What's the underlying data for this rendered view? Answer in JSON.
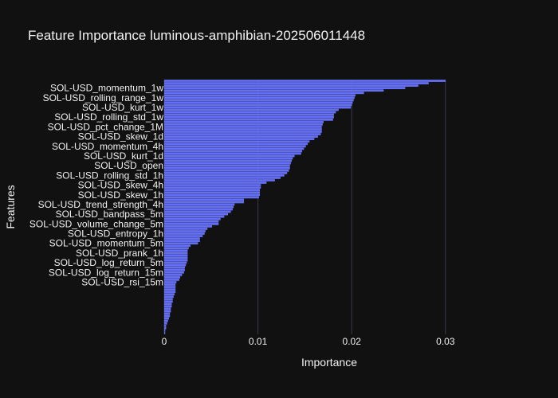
{
  "chart_data": {
    "type": "bar",
    "orientation": "horizontal",
    "title": "Feature Importance luminous-amphibian-202506011448",
    "xlabel": "Importance",
    "ylabel": "Features",
    "xlim": [
      0,
      0.0352
    ],
    "x_ticks": [
      0,
      0.01,
      0.02,
      0.03
    ],
    "x_tick_labels": [
      "0",
      "0.01",
      "0.02",
      "0.03"
    ],
    "grid": "vertical",
    "bar_color": "#636efa",
    "background_color": "#111111",
    "grid_color": "#3a3a4a",
    "text_color": "#f2f2f2",
    "feature_count": 105,
    "labeled_features": [
      {
        "name": "SOL-USD_momentum_1w",
        "rank": 3
      },
      {
        "name": "SOL-USD_rolling_range_1w",
        "rank": 7
      },
      {
        "name": "SOL-USD_kurt_1w",
        "rank": 11
      },
      {
        "name": "SOL-USD_rolling_std_1w",
        "rank": 15
      },
      {
        "name": "SOL-USD_pct_change_1M",
        "rank": 19
      },
      {
        "name": "SOL-USD_skew_1d",
        "rank": 23
      },
      {
        "name": "SOL-USD_momentum_4h",
        "rank": 27
      },
      {
        "name": "SOL-USD_kurt_1d",
        "rank": 31
      },
      {
        "name": "SOL-USD_open",
        "rank": 35
      },
      {
        "name": "SOL-USD_rolling_std_1h",
        "rank": 39
      },
      {
        "name": "SOL-USD_skew_4h",
        "rank": 43
      },
      {
        "name": "SOL-USD_skew_1h",
        "rank": 47
      },
      {
        "name": "SOL-USD_trend_strength_4h",
        "rank": 51
      },
      {
        "name": "SOL-USD_bandpass_5m",
        "rank": 55
      },
      {
        "name": "SOL-USD_volume_change_5m",
        "rank": 59
      },
      {
        "name": "SOL-USD_entropy_1h",
        "rank": 63
      },
      {
        "name": "SOL-USD_momentum_5m",
        "rank": 67
      },
      {
        "name": "SOL-USD_prank_1h",
        "rank": 71
      },
      {
        "name": "SOL-USD_log_return_5m",
        "rank": 75
      },
      {
        "name": "SOL-USD_log_return_15m",
        "rank": 79
      },
      {
        "name": "SOL-USD_rsi_15m",
        "rank": 83
      }
    ],
    "values": [
      0.03,
      0.0282,
      0.0271,
      0.0257,
      0.0234,
      0.0213,
      0.0204,
      0.0203,
      0.0202,
      0.0201,
      0.02,
      0.0199,
      0.0186,
      0.0183,
      0.0181,
      0.0181,
      0.018,
      0.017,
      0.0169,
      0.0168,
      0.0168,
      0.0168,
      0.0167,
      0.0164,
      0.016,
      0.0155,
      0.0153,
      0.0151,
      0.0149,
      0.0147,
      0.0146,
      0.0139,
      0.0137,
      0.0136,
      0.0135,
      0.0134,
      0.0134,
      0.0133,
      0.0131,
      0.0128,
      0.0124,
      0.0118,
      0.0109,
      0.0103,
      0.0103,
      0.0102,
      0.0102,
      0.0102,
      0.0101,
      0.0085,
      0.0085,
      0.0075,
      0.0074,
      0.0073,
      0.0071,
      0.0068,
      0.0064,
      0.006,
      0.0058,
      0.0058,
      0.0051,
      0.0046,
      0.0044,
      0.0043,
      0.0041,
      0.0038,
      0.0038,
      0.0036,
      0.0028,
      0.0026,
      0.0025,
      0.0025,
      0.0025,
      0.0025,
      0.0025,
      0.0024,
      0.0023,
      0.0022,
      0.0022,
      0.0021,
      0.0019,
      0.0017,
      0.0016,
      0.0013,
      0.0012,
      0.0012,
      0.0012,
      0.0012,
      0.0011,
      0.001,
      0.0009,
      0.0009,
      0.0008,
      0.0008,
      0.0007,
      0.0007,
      0.0006,
      0.0006,
      0.0005,
      0.0004,
      0.0003,
      0.0002,
      0.0002,
      0.0001,
      0.0001
    ]
  }
}
